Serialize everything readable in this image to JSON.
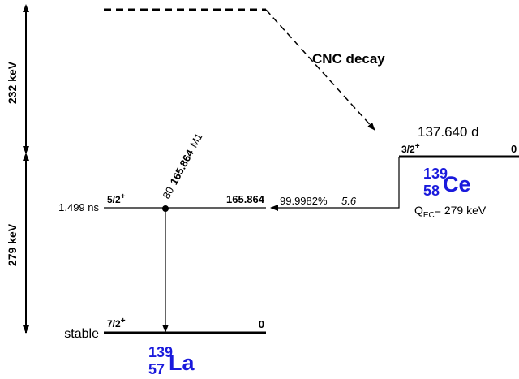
{
  "spans": [
    "232 keV",
    "279 keV"
  ],
  "cnc_decay": "CNC decay",
  "parent": {
    "half_life": "137.640 d",
    "spin": "3/2",
    "parity": "+",
    "energy": "0",
    "mass": "139",
    "z": "58",
    "symbol": "Ce",
    "q_symbol": "Q",
    "q_subscript": "EC",
    "q_value": "= 279 keV"
  },
  "feeding": {
    "branching": "99.9982%",
    "log_ft": "5.6"
  },
  "gamma": {
    "intensity": "80",
    "energy": "165.864",
    "multipolarity": "M1"
  },
  "daughter": {
    "mass": "139",
    "z": "57",
    "symbol": "La",
    "levels": [
      {
        "half_life": "1.499 ns",
        "spin": "5/2",
        "parity": "+",
        "energy": "165.864"
      },
      {
        "half_life": "stable",
        "spin": "7/2",
        "parity": "+",
        "energy": "0"
      }
    ]
  }
}
